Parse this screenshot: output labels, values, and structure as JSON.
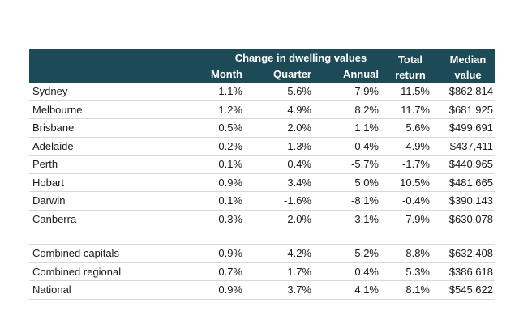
{
  "header": {
    "group_title": "Change in dwelling values",
    "month": "Month",
    "quarter": "Quarter",
    "annual": "Annual",
    "total_line1": "Total",
    "total_line2": "return",
    "median_line1": "Median",
    "median_line2": "value"
  },
  "colors": {
    "header_bg": "#1c4a57",
    "header_text": "#ffffff"
  },
  "rows": [
    {
      "name": "Sydney",
      "month": "1.1%",
      "quarter": "5.6%",
      "annual": "7.9%",
      "total": "11.5%",
      "median": "$862,814"
    },
    {
      "name": "Melbourne",
      "month": "1.2%",
      "quarter": "4.9%",
      "annual": "8.2%",
      "total": "11.7%",
      "median": "$681,925"
    },
    {
      "name": "Brisbane",
      "month": "0.5%",
      "quarter": "2.0%",
      "annual": "1.1%",
      "total": "5.6%",
      "median": "$499,691"
    },
    {
      "name": "Adelaide",
      "month": "0.2%",
      "quarter": "1.3%",
      "annual": "0.4%",
      "total": "4.9%",
      "median": "$437,411"
    },
    {
      "name": "Perth",
      "month": "0.1%",
      "quarter": "0.4%",
      "annual": "-5.7%",
      "total": "-1.7%",
      "median": "$440,965"
    },
    {
      "name": "Hobart",
      "month": "0.9%",
      "quarter": "3.4%",
      "annual": "5.0%",
      "total": "10.5%",
      "median": "$481,665"
    },
    {
      "name": "Darwin",
      "month": "0.1%",
      "quarter": "-1.6%",
      "annual": "-8.1%",
      "total": "-0.4%",
      "median": "$390,143"
    },
    {
      "name": "Canberra",
      "month": "0.3%",
      "quarter": "2.0%",
      "annual": "3.1%",
      "total": "7.9%",
      "median": "$630,078"
    }
  ],
  "summary_rows": [
    {
      "name": "Combined capitals",
      "month": "0.9%",
      "quarter": "4.2%",
      "annual": "5.2%",
      "total": "8.8%",
      "median": "$632,408"
    },
    {
      "name": "Combined regional",
      "month": "0.7%",
      "quarter": "1.7%",
      "annual": "0.4%",
      "total": "5.3%",
      "median": "$386,618"
    },
    {
      "name": "National",
      "month": "0.9%",
      "quarter": "3.7%",
      "annual": "4.1%",
      "total": "8.1%",
      "median": "$545,622"
    }
  ]
}
